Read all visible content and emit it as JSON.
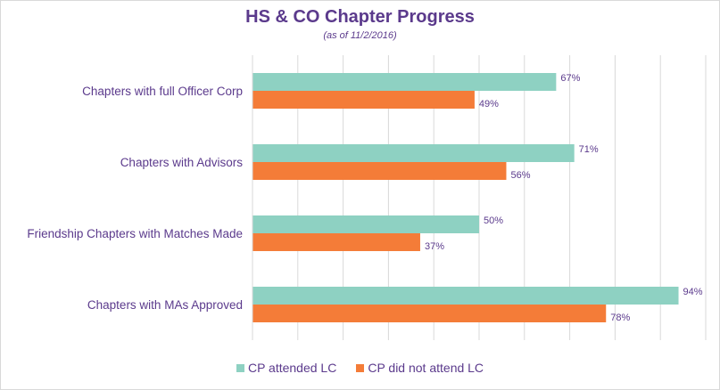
{
  "chart_data": {
    "type": "bar",
    "orientation": "horizontal",
    "title": "HS & CO Chapter Progress",
    "subtitle": "(as of 11/2/2016)",
    "categories": [
      "Chapters with full Officer Corp",
      "Chapters with Advisors",
      "Friendship Chapters with Matches Made",
      "Chapters with MAs Approved"
    ],
    "series": [
      {
        "name": "CP attended LC",
        "color": "#8ed1c2",
        "values": [
          67,
          71,
          50,
          94
        ],
        "labels": [
          "67%",
          "71%",
          "50%",
          "94%"
        ]
      },
      {
        "name": "CP did not attend LC",
        "color": "#f47c38",
        "values": [
          49,
          56,
          37,
          78
        ],
        "labels": [
          "49%",
          "56%",
          "37%",
          "78%"
        ]
      }
    ],
    "xlim": [
      0,
      100
    ],
    "grid": true,
    "legend_position": "bottom"
  }
}
